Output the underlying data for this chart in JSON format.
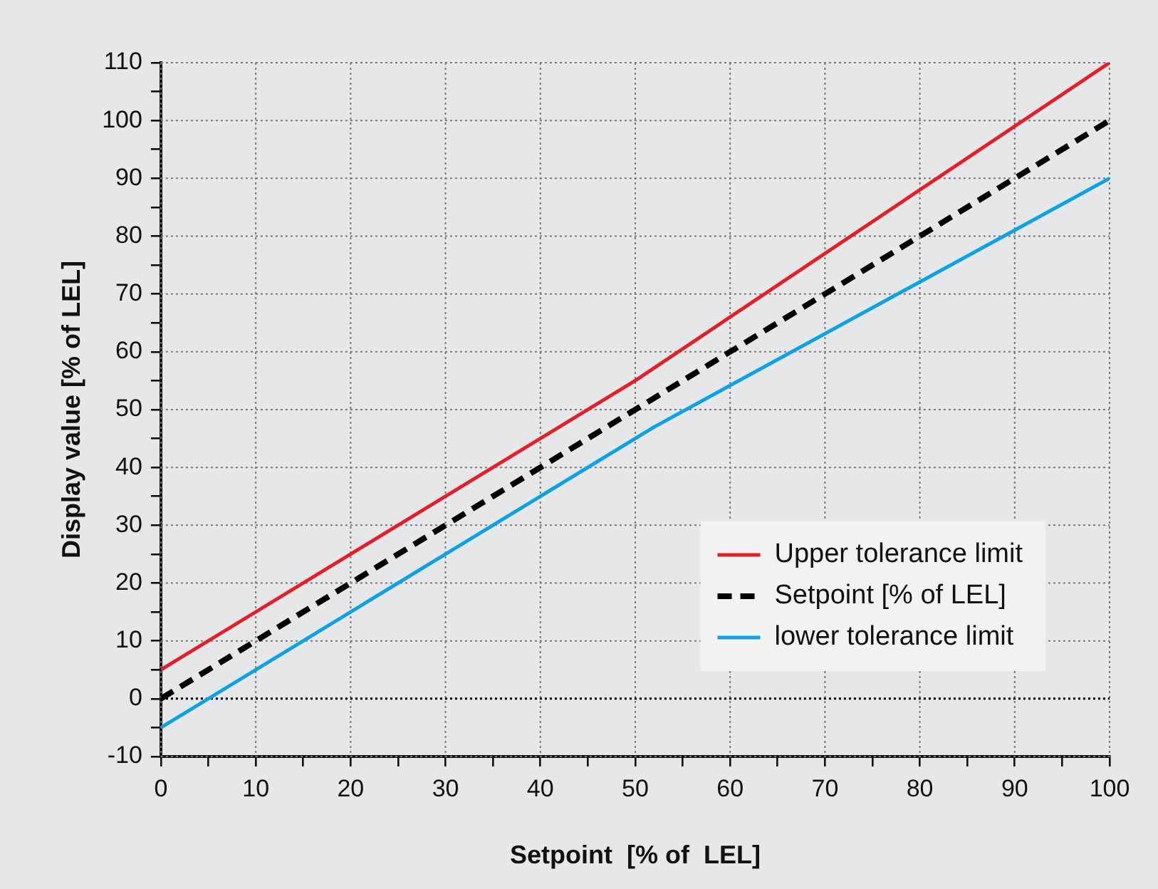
{
  "chart_data": {
    "type": "line",
    "xlabel": "Setpoint  [% of  LEL]",
    "ylabel": "Display value [% of LEL]",
    "xlim": [
      0,
      100
    ],
    "ylim": [
      -10,
      110
    ],
    "xticks": [
      0,
      {
        "value": 5,
        "label": null
      },
      10,
      {
        "value": 15,
        "label": null
      },
      20,
      {
        "value": 25,
        "label": null
      },
      30,
      {
        "value": 35,
        "label": null
      },
      40,
      {
        "value": 45,
        "label": null
      },
      50,
      {
        "value": 55,
        "label": null
      },
      60,
      {
        "value": 65,
        "label": null
      },
      70,
      {
        "value": 75,
        "label": null
      },
      80,
      {
        "value": 85,
        "label": null
      },
      90,
      {
        "value": 95,
        "label": null
      },
      100
    ],
    "yticks": [
      -10,
      {
        "value": -5,
        "label": null
      },
      0,
      {
        "value": 5,
        "label": null
      },
      10,
      {
        "value": 15,
        "label": null
      },
      20,
      {
        "value": 25,
        "label": null
      },
      30,
      {
        "value": 35,
        "label": null
      },
      40,
      {
        "value": 45,
        "label": null
      },
      50,
      {
        "value": 55,
        "label": null
      },
      60,
      {
        "value": 65,
        "label": null
      },
      70,
      {
        "value": 75,
        "label": null
      },
      80,
      {
        "value": 85,
        "label": null
      },
      90,
      {
        "value": 95,
        "label": null
      },
      100,
      {
        "value": 105,
        "label": null
      },
      110
    ],
    "grid": true,
    "legend": "bottom right",
    "marker": "none",
    "ref_lines": [
      {
        "axis": "y",
        "value": 0,
        "color": "#000000",
        "line_style": "dotted"
      }
    ],
    "series": [
      {
        "name": "Upper tolerance limit",
        "color": "#e0202a",
        "x": [
          0,
          50,
          100
        ],
        "values": [
          5,
          55,
          110
        ]
      },
      {
        "name": "Setpoint [% of LEL]",
        "color": "#000000",
        "line_style": "dashed",
        "x": [
          0,
          100
        ],
        "values": [
          0,
          100
        ]
      },
      {
        "name": "lower tolerance limit",
        "color": "#0ea2e2",
        "x": [
          0,
          52,
          100
        ],
        "values": [
          -5,
          47,
          90
        ]
      }
    ]
  }
}
